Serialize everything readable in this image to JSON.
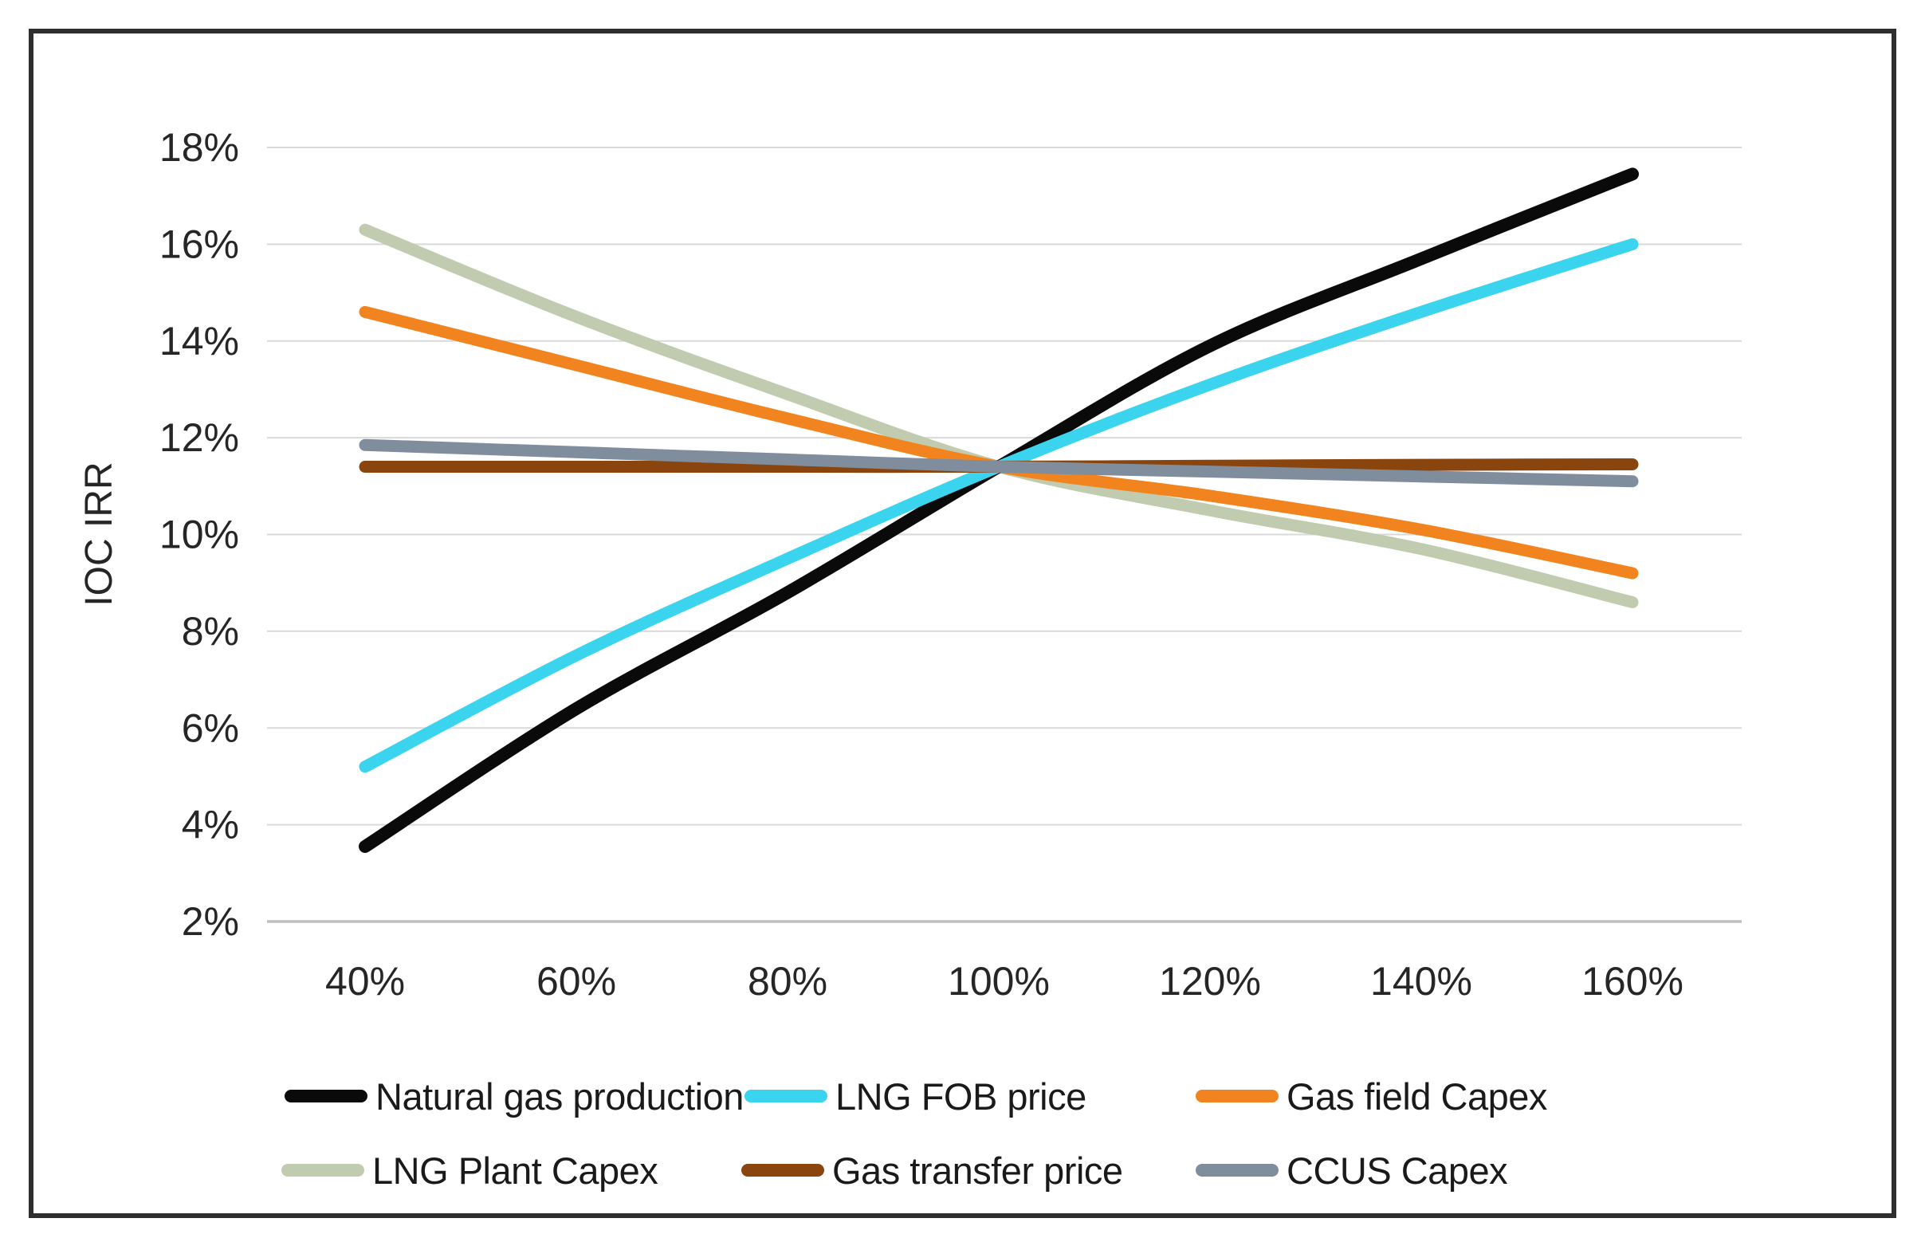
{
  "figure": {
    "background": "#ffffff",
    "border_color": "#2e2e2e",
    "gridline_color": "#d9d9d9",
    "axis_line_color": "#bfbfbf",
    "text_color": "#262626"
  },
  "chart_data": {
    "type": "line",
    "title": "",
    "xlabel": "",
    "ylabel": "IOC IRR",
    "x_values": [
      40,
      60,
      80,
      100,
      120,
      140,
      160
    ],
    "x_tick_labels": [
      "40%",
      "60%",
      "80%",
      "100%",
      "120%",
      "140%",
      "160%"
    ],
    "y_ticks": [
      2,
      4,
      6,
      8,
      10,
      12,
      14,
      16,
      18
    ],
    "y_tick_labels": [
      "2%",
      "4%",
      "6%",
      "8%",
      "10%",
      "12%",
      "14%",
      "16%",
      "18%"
    ],
    "ylim": [
      2,
      18
    ],
    "grid": "horizontal-only",
    "line_style": "smoothed, round caps",
    "legend_position": "bottom, 2 rows x 3 columns",
    "series": [
      {
        "name": "Natural gas production",
        "color": "#0a0a0a",
        "values": [
          3.55,
          6.4,
          8.8,
          11.4,
          13.9,
          15.7,
          17.45
        ]
      },
      {
        "name": "LNG FOB price",
        "color": "#3bd4ee",
        "values": [
          5.2,
          7.5,
          9.5,
          11.4,
          13.1,
          14.6,
          16.0
        ]
      },
      {
        "name": "Gas field Capex",
        "color": "#f28420",
        "values": [
          14.6,
          13.5,
          12.4,
          11.4,
          10.8,
          10.1,
          9.2
        ]
      },
      {
        "name": "LNG Plant Capex",
        "color": "#c1cbb0",
        "values": [
          16.3,
          14.5,
          12.9,
          11.4,
          10.5,
          9.7,
          8.6
        ]
      },
      {
        "name": "Gas transfer price",
        "color": "#8a450f",
        "values": [
          11.4,
          11.4,
          11.4,
          11.4,
          11.42,
          11.44,
          11.45
        ]
      },
      {
        "name": "CCUS Capex",
        "color": "#7f8d9d",
        "values": [
          11.85,
          11.7,
          11.55,
          11.4,
          11.3,
          11.2,
          11.1
        ]
      }
    ]
  }
}
